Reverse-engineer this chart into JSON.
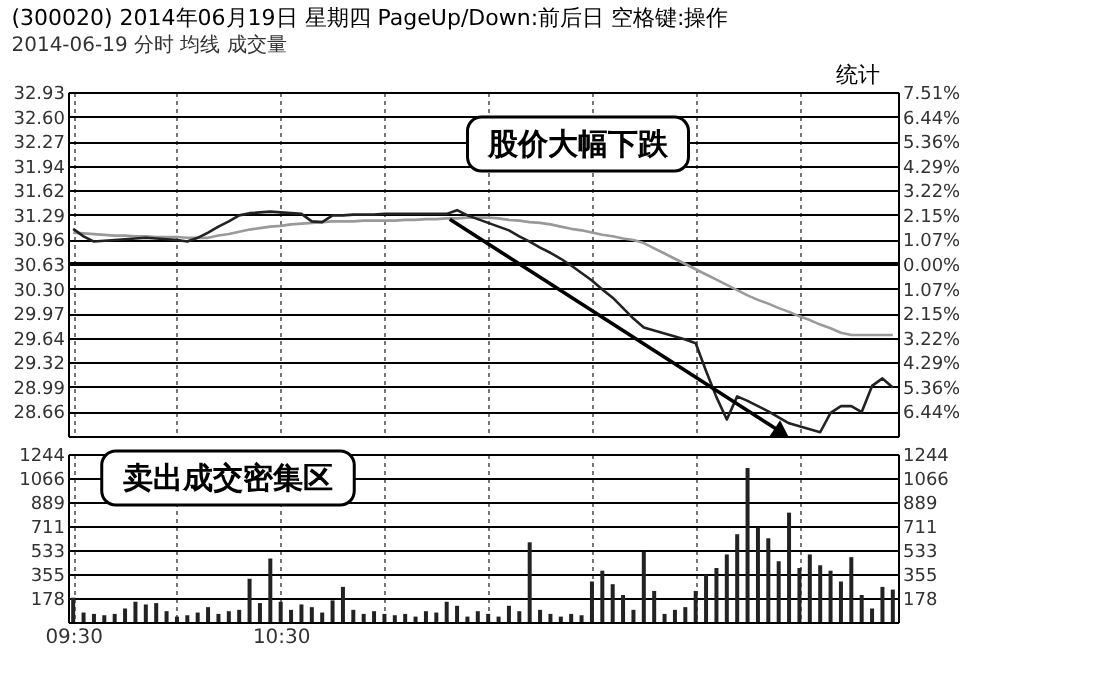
{
  "chart_data": [
    {
      "type": "line",
      "title": "(300020) 2014年06月19日 星期四 PageUp/Down:前后日 空格键:操作",
      "subtitle": "2014-06-19 分时 均线 成交量",
      "annotations": [
        "股价大幅下跌",
        "统计"
      ],
      "categories": [
        null,
        null,
        null,
        null,
        null,
        null,
        null,
        null,
        null,
        null,
        null,
        null,
        null,
        null,
        null,
        null,
        null,
        null,
        null,
        null,
        null,
        null,
        null,
        null,
        null,
        null,
        null,
        null,
        null,
        null,
        null,
        null,
        null,
        null,
        null,
        null,
        null,
        null,
        null,
        null,
        null,
        null,
        null,
        null,
        null,
        null,
        null,
        null,
        null,
        null,
        null,
        null,
        null,
        null,
        null,
        null,
        null,
        null,
        null,
        null,
        null,
        null,
        null,
        null,
        null,
        null,
        null,
        null,
        null,
        null,
        null,
        null,
        null,
        null,
        null,
        null,
        null,
        null,
        null,
        null
      ],
      "tick_labels": "y",
      "ylim": [
        28.33,
        32.93
      ],
      "yticks": [
        {
          "value": 32.93,
          "label": "32.93"
        },
        {
          "value": 32.6,
          "label": "32.60"
        },
        {
          "value": 32.27,
          "label": "32.27"
        },
        {
          "value": 31.94,
          "label": "31.94"
        },
        {
          "value": 31.62,
          "label": "31.62"
        },
        {
          "value": 31.29,
          "label": "31.29"
        },
        {
          "value": 30.96,
          "label": "30.96"
        },
        {
          "value": 30.63,
          "label": "30.63"
        },
        {
          "value": 30.3,
          "label": "30.30"
        },
        {
          "value": 29.97,
          "label": "29.97"
        },
        {
          "value": 29.64,
          "label": "29.64"
        },
        {
          "value": 29.32,
          "label": "29.32"
        },
        {
          "value": 28.99,
          "label": "28.99"
        },
        {
          "value": 28.66,
          "label": "28.66"
        }
      ],
      "y2lim": [
        -7.51,
        7.51
      ],
      "y2ticks": [
        {
          "value": 7.51,
          "label": "7.51%"
        },
        {
          "value": 6.44,
          "label": "6.44%"
        },
        {
          "value": 5.36,
          "label": "5.36%"
        },
        {
          "value": 4.29,
          "label": "4.29%"
        },
        {
          "value": 3.22,
          "label": "3.22%"
        },
        {
          "value": 2.15,
          "label": "2.15%"
        },
        {
          "value": 1.07,
          "label": "1.07%"
        },
        {
          "value": 0,
          "label": "0.00%"
        },
        {
          "value": -1.07,
          "label": "1.07%"
        },
        {
          "value": -2.15,
          "label": "2.15%"
        },
        {
          "value": -3.22,
          "label": "3.22%"
        },
        {
          "value": -4.29,
          "label": "4.29%"
        },
        {
          "value": -5.36,
          "label": "5.36%"
        },
        {
          "value": -6.44,
          "label": "6.44%"
        }
      ],
      "grid": true,
      "marker": "none",
      "line_style": "solid",
      "ref_lines": [
        {
          "axis": "y",
          "value": 30.63,
          "color": "#000000"
        }
      ],
      "series": [
        {
          "type": "line",
          "color": "#9a9a9a",
          "values": [
            31.05,
            31.04,
            31.03,
            31.02,
            31.01,
            31.01,
            31.0,
            31.0,
            30.99,
            30.99,
            30.99,
            30.98,
            30.98,
            30.98,
            31.01,
            31.03,
            31.06,
            31.09,
            31.11,
            31.13,
            31.14,
            31.16,
            31.17,
            31.18,
            31.19,
            31.2,
            31.2,
            31.2,
            31.21,
            31.21,
            31.21,
            31.21,
            31.22,
            31.22,
            31.23,
            31.23,
            31.24,
            31.24,
            31.25,
            31.25,
            31.25,
            31.24,
            31.22,
            31.21,
            31.19,
            31.18,
            31.16,
            31.13,
            31.1,
            31.08,
            31.05,
            31.02,
            31.0,
            30.97,
            30.95,
            30.91,
            30.84,
            30.77,
            30.7,
            30.63,
            30.56,
            30.49,
            30.42,
            30.35,
            30.28,
            30.21,
            30.15,
            30.1,
            30.04,
            29.99,
            29.93,
            29.88,
            29.82,
            29.77,
            29.71,
            29.68,
            29.68,
            29.68,
            29.68,
            29.68
          ]
        },
        {
          "type": "line",
          "color": "#222222",
          "values": [
            31.1,
            31.0,
            30.93,
            30.94,
            30.95,
            30.96,
            30.97,
            30.98,
            30.97,
            30.96,
            30.95,
            30.93,
            30.98,
            31.05,
            31.13,
            31.2,
            31.28,
            31.31,
            31.32,
            31.33,
            31.32,
            31.31,
            31.3,
            31.2,
            31.19,
            31.28,
            31.28,
            31.29,
            31.29,
            31.29,
            31.3,
            31.3,
            31.3,
            31.3,
            31.3,
            31.3,
            31.3,
            31.35,
            31.28,
            31.23,
            31.18,
            31.13,
            31.08,
            31.0,
            30.93,
            30.85,
            30.78,
            30.7,
            30.61,
            30.51,
            30.41,
            30.29,
            30.18,
            30.04,
            29.9,
            29.78,
            29.74,
            29.7,
            29.66,
            29.62,
            29.57,
            29.2,
            28.85,
            28.55,
            28.86,
            28.8,
            28.73,
            28.66,
            28.58,
            28.5,
            28.46,
            28.42,
            28.38,
            28.64,
            28.73,
            28.73,
            28.65,
            29.0,
            29.1,
            28.98
          ]
        }
      ]
    },
    {
      "type": "bar",
      "annotations": [
        "卖出成交密集区"
      ],
      "color": "#222222",
      "categories": [
        "09:30",
        null,
        null,
        null,
        null,
        null,
        null,
        null,
        null,
        null,
        null,
        null,
        null,
        null,
        null,
        null,
        null,
        null,
        null,
        null,
        "10:30",
        null,
        null,
        null,
        null,
        null,
        null,
        null,
        null,
        null,
        null,
        null,
        null,
        null,
        null,
        null,
        null,
        null,
        null,
        null,
        null,
        null,
        null,
        null,
        null,
        null,
        null,
        null,
        null,
        null,
        null,
        null,
        null,
        null,
        null,
        null,
        null,
        null,
        null,
        null,
        null,
        null,
        null,
        null,
        null,
        null,
        null,
        null,
        null,
        null,
        null,
        null,
        null,
        null,
        null,
        null,
        null,
        null,
        null,
        null
      ],
      "ylim": [
        0,
        1244
      ],
      "yticks": [
        178,
        355,
        533,
        711,
        889,
        1066,
        1244
      ],
      "y2lim": [
        0,
        1244
      ],
      "y2ticks": [
        178,
        355,
        533,
        711,
        889,
        1066,
        1244
      ],
      "grid": true,
      "values": [
        180,
        70,
        60,
        50,
        60,
        100,
        150,
        130,
        140,
        80,
        40,
        50,
        70,
        110,
        60,
        80,
        90,
        320,
        140,
        470,
        150,
        90,
        130,
        110,
        70,
        160,
        260,
        90,
        60,
        80,
        60,
        50,
        60,
        40,
        80,
        70,
        150,
        120,
        40,
        80,
        60,
        40,
        120,
        80,
        590,
        90,
        60,
        40,
        60,
        50,
        300,
        380,
        280,
        200,
        90,
        520,
        230,
        60,
        90,
        110,
        230,
        350,
        400,
        500,
        650,
        1140,
        700,
        620,
        450,
        810,
        400,
        500,
        420,
        380,
        300,
        480,
        200,
        100,
        260,
        240
      ]
    }
  ]
}
